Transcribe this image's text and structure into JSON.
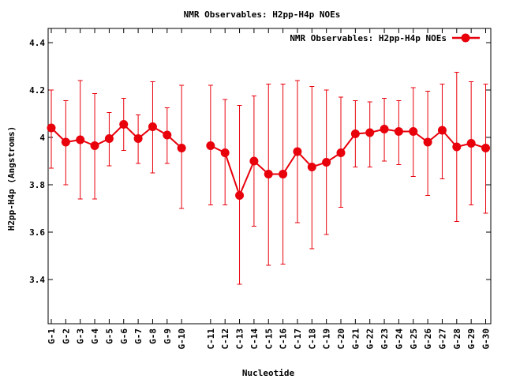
{
  "chart_data": {
    "type": "line",
    "title": "NMR Observables: H2pp-H4p NOEs",
    "xlabel": "Nucleotide",
    "ylabel": "H2pp-H4p (Angstroms)",
    "ylim": [
      3.2,
      4.45
    ],
    "yticks": [
      "3.4",
      "3.6",
      "3.8",
      "4",
      "4.2",
      "4.4"
    ],
    "ytick_values": [
      3.4,
      3.6,
      3.8,
      4.0,
      4.2,
      4.4
    ],
    "grid": false,
    "legend_position": "top-right",
    "color": "#e8000b",
    "categories": [
      "G-1",
      "G-2",
      "G-3",
      "G-4",
      "G-5",
      "G-6",
      "G-7",
      "G-8",
      "G-9",
      "G-10",
      "",
      "C-11",
      "C-12",
      "C-13",
      "C-14",
      "C-15",
      "C-16",
      "C-17",
      "C-18",
      "C-19",
      "C-20",
      "G-21",
      "G-22",
      "G-23",
      "G-24",
      "G-25",
      "G-26",
      "G-27",
      "G-28",
      "G-29",
      "G-30"
    ],
    "series": [
      {
        "name": "NMR Observables: H2pp-H4p NOEs",
        "values": [
          4.04,
          3.98,
          3.99,
          3.965,
          3.995,
          4.055,
          3.995,
          4.045,
          4.01,
          3.955,
          null,
          3.965,
          3.935,
          3.755,
          3.9,
          3.845,
          3.845,
          3.94,
          3.875,
          3.895,
          3.935,
          4.015,
          4.02,
          4.035,
          4.025,
          4.025,
          3.98,
          4.03,
          3.96,
          3.975,
          3.955
        ],
        "err_low": [
          3.87,
          3.8,
          3.74,
          3.74,
          3.88,
          3.945,
          3.89,
          3.85,
          3.89,
          3.7,
          null,
          3.715,
          3.715,
          3.38,
          3.625,
          3.46,
          3.465,
          3.64,
          3.53,
          3.59,
          3.705,
          3.875,
          3.875,
          3.9,
          3.885,
          3.835,
          3.755,
          3.825,
          3.645,
          3.715,
          3.68
        ],
        "err_high": [
          4.2,
          4.155,
          4.24,
          4.185,
          4.105,
          4.165,
          4.095,
          4.235,
          4.125,
          4.22,
          null,
          4.22,
          4.16,
          4.135,
          4.175,
          4.225,
          4.225,
          4.24,
          4.215,
          4.2,
          4.17,
          4.155,
          4.15,
          4.165,
          4.155,
          4.21,
          4.195,
          4.225,
          4.275,
          4.235,
          4.225
        ]
      }
    ]
  }
}
